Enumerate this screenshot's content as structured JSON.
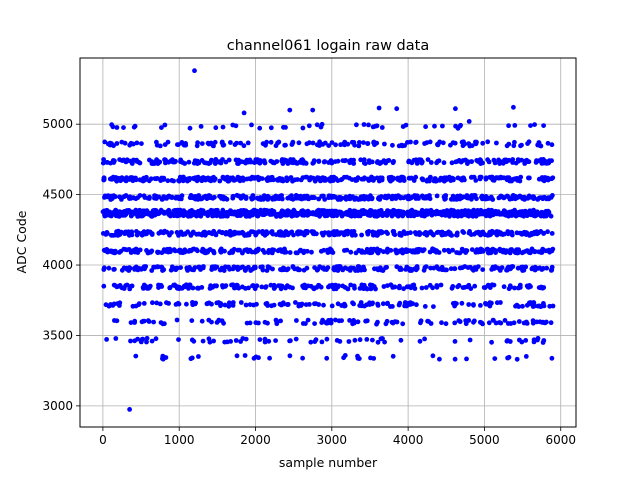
{
  "chart_data": {
    "type": "scatter",
    "title": "channel061 logain raw data",
    "xlabel": "sample number",
    "ylabel": "ADC Code",
    "xlim": [
      -300,
      6200
    ],
    "ylim": [
      2850,
      5470
    ],
    "xticks": [
      0,
      1000,
      2000,
      3000,
      4000,
      5000,
      6000
    ],
    "yticks": [
      3000,
      3500,
      4000,
      4500,
      5000
    ],
    "grid": true,
    "marker_color": "#0000ff",
    "series": [
      {
        "x_range": [
          0,
          5900
        ],
        "levels": [
          {
            "y": 3345,
            "count": 35
          },
          {
            "y": 3465,
            "count": 70
          },
          {
            "y": 3595,
            "count": 110
          },
          {
            "y": 3720,
            "count": 150
          },
          {
            "y": 3845,
            "count": 190
          },
          {
            "y": 3975,
            "count": 240
          },
          {
            "y": 4100,
            "count": 290
          },
          {
            "y": 4225,
            "count": 330
          },
          {
            "y": 4360,
            "count": 460
          },
          {
            "y": 4375,
            "count": 460
          },
          {
            "y": 4480,
            "count": 360
          },
          {
            "y": 4610,
            "count": 340
          },
          {
            "y": 4735,
            "count": 250
          },
          {
            "y": 4860,
            "count": 140
          },
          {
            "y": 4985,
            "count": 45
          }
        ],
        "outliers": [
          {
            "x": 1200,
            "y": 5380
          },
          {
            "x": 350,
            "y": 2975
          },
          {
            "x": 5380,
            "y": 5120
          },
          {
            "x": 3620,
            "y": 5115
          },
          {
            "x": 2450,
            "y": 5100
          },
          {
            "x": 2750,
            "y": 5100
          },
          {
            "x": 3850,
            "y": 5110
          },
          {
            "x": 4620,
            "y": 5110
          },
          {
            "x": 1850,
            "y": 5080
          },
          {
            "x": 4800,
            "y": 5020
          }
        ]
      }
    ]
  }
}
